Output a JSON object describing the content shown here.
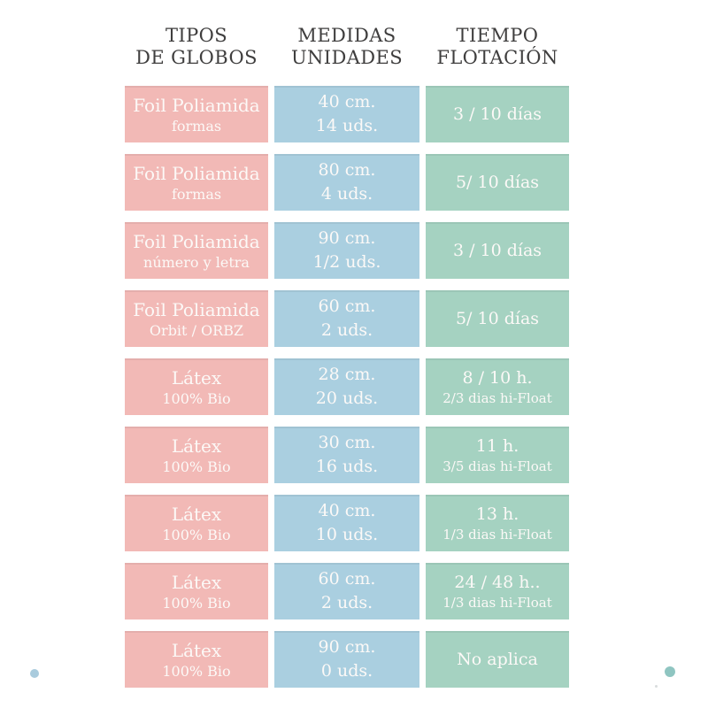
{
  "header": {
    "col1": {
      "line1": "TIPOS",
      "line2": "DE GLOBOS"
    },
    "col2": {
      "line1": "MEDIDAS",
      "line2": "UNIDADES"
    },
    "col3": {
      "line1": "TIEMPO",
      "line2": "FLOTACIÓN"
    }
  },
  "rows": [
    {
      "tipo": {
        "line1": "Foil Poliamida",
        "line2": "formas"
      },
      "medida": {
        "line1": "40 cm.",
        "line2": "14 uds."
      },
      "tiempo": {
        "line1": "3 / 10 días",
        "line2": ""
      }
    },
    {
      "tipo": {
        "line1": "Foil Poliamida",
        "line2": "formas"
      },
      "medida": {
        "line1": "80 cm.",
        "line2": "4 uds."
      },
      "tiempo": {
        "line1": "5/ 10 días",
        "line2": ""
      }
    },
    {
      "tipo": {
        "line1": "Foil Poliamida",
        "line2": "número y letra"
      },
      "medida": {
        "line1": "90 cm.",
        "line2": "1/2 uds."
      },
      "tiempo": {
        "line1": "3 / 10 días",
        "line2": ""
      }
    },
    {
      "tipo": {
        "line1": "Foil Poliamida",
        "line2": "Orbit / ORBZ"
      },
      "medida": {
        "line1": "60 cm.",
        "line2": "2 uds."
      },
      "tiempo": {
        "line1": "5/ 10 días",
        "line2": ""
      }
    },
    {
      "tipo": {
        "line1": "Látex",
        "line2": "100% Bio"
      },
      "medida": {
        "line1": "28 cm.",
        "line2": "20 uds."
      },
      "tiempo": {
        "line1": "8 / 10 h.",
        "line2": "2/3 dias hi-Float"
      }
    },
    {
      "tipo": {
        "line1": "Látex",
        "line2": "100% Bio"
      },
      "medida": {
        "line1": "30 cm.",
        "line2": "16 uds."
      },
      "tiempo": {
        "line1": "11 h.",
        "line2": "3/5 dias hi-Float"
      }
    },
    {
      "tipo": {
        "line1": "Látex",
        "line2": "100% Bio"
      },
      "medida": {
        "line1": "40 cm.",
        "line2": "10 uds."
      },
      "tiempo": {
        "line1": "13 h.",
        "line2": "1/3 dias hi-Float"
      }
    },
    {
      "tipo": {
        "line1": "Látex",
        "line2": "100% Bio"
      },
      "medida": {
        "line1": "60 cm.",
        "line2": "2 uds."
      },
      "tiempo": {
        "line1": "24 / 48 h..",
        "line2": "1/3 dias hi-Float"
      }
    },
    {
      "tipo": {
        "line1": "Látex",
        "line2": "100% Bio"
      },
      "medida": {
        "line1": "90 cm.",
        "line2": "0 uds."
      },
      "tiempo": {
        "line1": "No aplica",
        "line2": ""
      }
    }
  ],
  "colors": {
    "tipo_bg": "#f2b9b6",
    "medida_bg": "#aacfe0",
    "tiempo_bg": "#a5d2c1",
    "header_text": "#3f3e3e",
    "cell_text": "#fcf9f7",
    "dot_left": "#a9cbdd",
    "dot_right": "#8fc5c1"
  },
  "chart_data": {
    "type": "table",
    "title": "",
    "columns": [
      "TIPOS DE GLOBOS",
      "MEDIDAS UNIDADES",
      "TIEMPO FLOTACIÓN"
    ],
    "rows": [
      [
        "Foil Poliamida formas",
        "40 cm. 14 uds.",
        "3 / 10 días"
      ],
      [
        "Foil Poliamida formas",
        "80 cm. 4 uds.",
        "5/ 10 días"
      ],
      [
        "Foil Poliamida número y letra",
        "90 cm. 1/2 uds.",
        "3 / 10 días"
      ],
      [
        "Foil Poliamida Orbit / ORBZ",
        "60 cm. 2 uds.",
        "5/ 10 días"
      ],
      [
        "Látex 100% Bio",
        "28 cm. 20 uds.",
        "8 / 10 h. 2/3 dias hi-Float"
      ],
      [
        "Látex 100% Bio",
        "30 cm. 16 uds.",
        "11 h. 3/5 dias hi-Float"
      ],
      [
        "Látex 100% Bio",
        "40 cm. 10 uds.",
        "13 h. 1/3 dias hi-Float"
      ],
      [
        "Látex 100% Bio",
        "60 cm. 2 uds.",
        "24 / 48 h.. 1/3 dias hi-Float"
      ],
      [
        "Látex 100% Bio",
        "90 cm. 0 uds.",
        "No aplica"
      ]
    ],
    "layout": {
      "grid": false,
      "legend": false,
      "column_colors": [
        "#f2b9b6",
        "#aacfe0",
        "#a5d2c1"
      ]
    }
  }
}
